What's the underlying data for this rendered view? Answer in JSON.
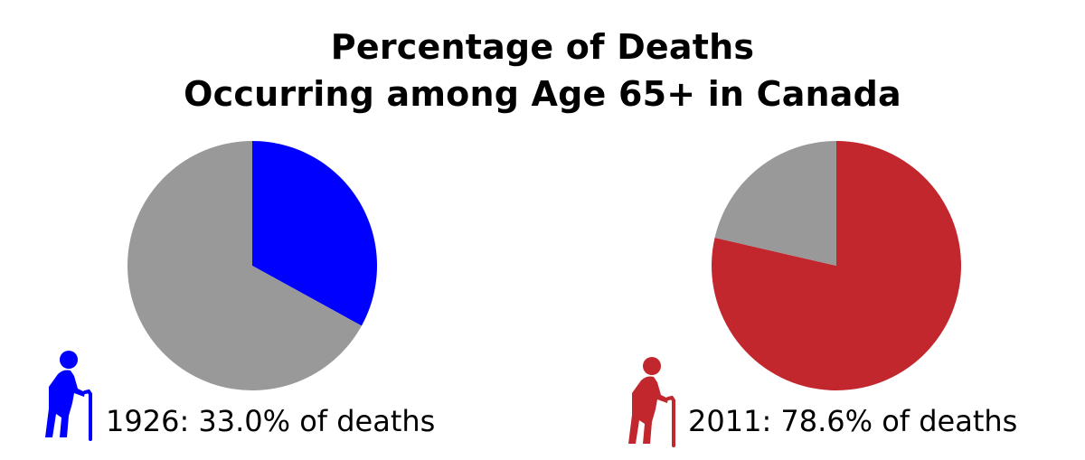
{
  "title_lines": [
    "Percentage of Deaths",
    "Occurring among Age 65+ in Canada"
  ],
  "colors": {
    "remainder": "#999999",
    "pie_1926": "#0000ff",
    "pie_2011": "#c1272d"
  },
  "icons": {
    "person_1926": "elderly-person-with-cane-icon",
    "person_2011": "elderly-person-with-cane-icon"
  },
  "chart_data": [
    {
      "type": "pie",
      "title": "Percentage of Deaths Occurring among Age 65+ in Canada",
      "year": "1926",
      "slices": [
        {
          "value": 33.0,
          "color": "#0000ff"
        },
        {
          "value": 67.0,
          "color": "#999999"
        }
      ],
      "label": "1926: 33.0% of deaths"
    },
    {
      "type": "pie",
      "title": "Percentage of Deaths Occurring among Age 65+ in Canada",
      "year": "2011",
      "slices": [
        {
          "value": 78.6,
          "color": "#c1272d"
        },
        {
          "value": 21.4,
          "color": "#999999"
        }
      ],
      "label": "2011: 78.6% of deaths"
    }
  ]
}
